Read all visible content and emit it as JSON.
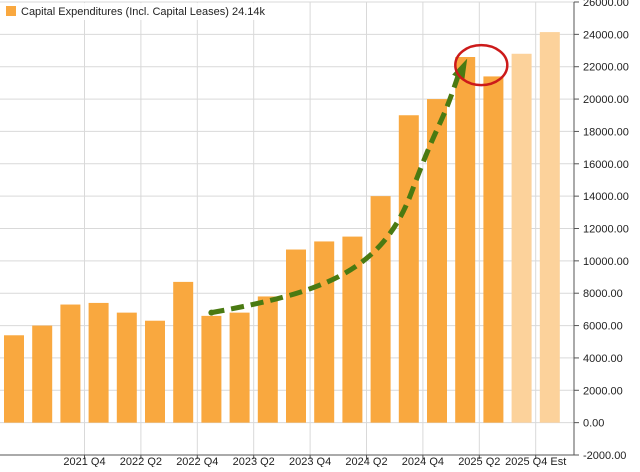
{
  "legend": {
    "label": "Capital Expenditures (Incl. Capital Leases)",
    "value": "24.14k"
  },
  "colors": {
    "bar": "#f9a83f",
    "bar_estimate": "#fcd29b",
    "trend_arrow": "#4a7a12",
    "highlight_circle": "#cc1a1a",
    "grid": "#d9d9d9",
    "axis_text": "#222222"
  },
  "chart_data": {
    "type": "bar",
    "title": "",
    "xlabel": "",
    "ylabel": "",
    "ylim": [
      -2000,
      26000
    ],
    "ytick_step": 2000,
    "ytick_labels": [
      "-2000.00",
      "0.00",
      "2000.00",
      "4000.00",
      "6000.00",
      "8000.00",
      "10000.00",
      "12000.00",
      "14000.00",
      "16000.00",
      "18000.00",
      "20000.00",
      "22000.00",
      "24000.00",
      "26000.00"
    ],
    "xtick_labels": [
      {
        "label": "2021 Q4",
        "index": 2.5
      },
      {
        "label": "2022 Q2",
        "index": 4.5
      },
      {
        "label": "2022 Q4",
        "index": 6.5
      },
      {
        "label": "2023 Q2",
        "index": 8.5
      },
      {
        "label": "2023 Q4",
        "index": 10.5
      },
      {
        "label": "2024 Q2",
        "index": 12.5
      },
      {
        "label": "2024 Q4",
        "index": 14.5
      },
      {
        "label": "2025 Q2",
        "index": 16.5
      },
      {
        "label": "2025 Q4 Est",
        "index": 18.5
      }
    ],
    "series": [
      {
        "name": "Capital Expenditures (Incl. Capital Leases)",
        "values": [
          5400,
          6000,
          7300,
          7400,
          6800,
          6300,
          8700,
          6600,
          6800,
          7800,
          10700,
          11200,
          11500,
          14000,
          19000,
          20000,
          22600,
          21400,
          22800,
          24140
        ],
        "estimate_from_index": 18
      }
    ],
    "grid": true,
    "legend_position": "top-left",
    "annotations": [
      {
        "type": "dashed-arrow",
        "from_index": 7,
        "from_value": 6800,
        "to_index": 16,
        "to_value": 22500
      },
      {
        "type": "ellipse",
        "center_index": 16.5,
        "center_value": 22100
      }
    ]
  }
}
